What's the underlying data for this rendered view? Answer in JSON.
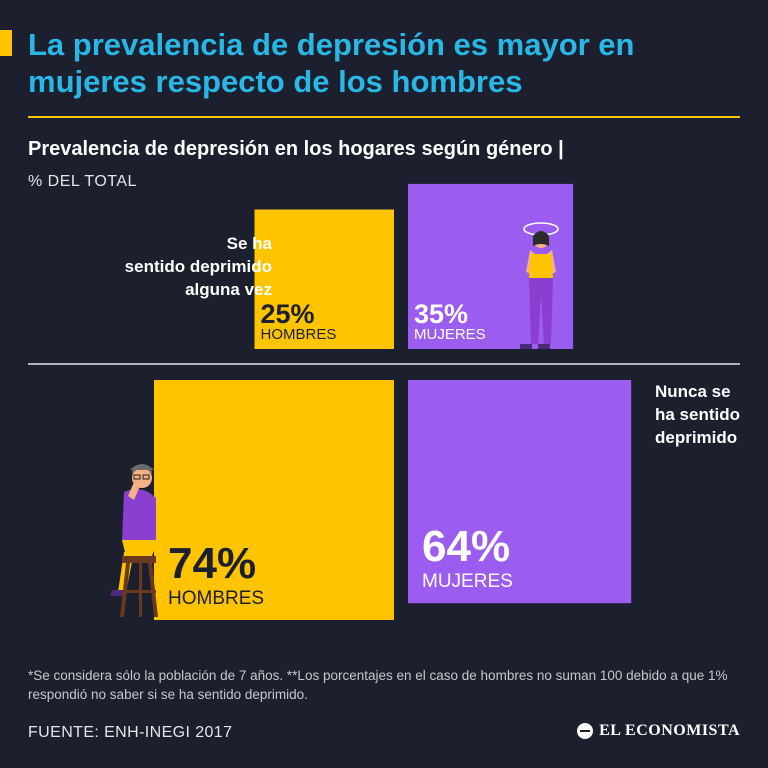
{
  "header": {
    "title": "La prevalencia de depresión es mayor en mujeres respecto de los hombres",
    "subtitle": "Prevalencia de depresión en los hogares según género |",
    "units": "% DEL TOTAL"
  },
  "chart_data": {
    "type": "bar",
    "categories": [
      "Se ha\nsentido deprimido\nalguna vez",
      "Nunca se\nha sentido\ndeprimido"
    ],
    "series": [
      {
        "name": "HOMBRES",
        "values": [
          25,
          74
        ],
        "color": "#ffc400"
      },
      {
        "name": "MUJERES",
        "values": [
          35,
          64
        ],
        "color": "#9b5cf0"
      }
    ],
    "value_suffix": "%"
  },
  "footer": {
    "note": "*Se considera sólo la población de 7 años. **Los porcentajes en el caso de hombres no suman 100 debido a que 1% respondió no saber si se ha sentido deprimido.",
    "source": "FUENTE: ENH-INEGI 2017",
    "logo_text": "EL ECONOMISTA"
  },
  "colors": {
    "background": "#1b1f2e",
    "title": "#29b8e6",
    "accent": "#ffc400",
    "divider": "#e6e6e6",
    "dark_text": "#1b1f2e"
  },
  "icons": [
    "woman-holding-head-icon",
    "man-on-stool-icon",
    "el-economista-logo-icon"
  ]
}
